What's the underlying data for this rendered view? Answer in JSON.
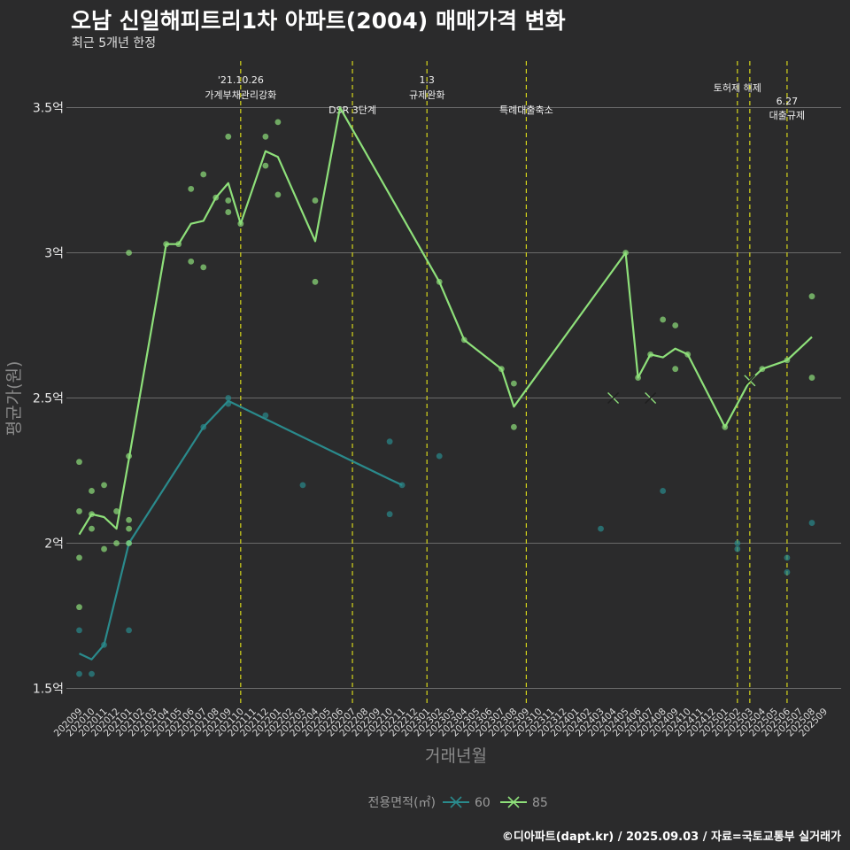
{
  "chart_data": {
    "type": "line",
    "title": "오남 신일해피트리1차 아파트(2004) 매매가격 변화",
    "subtitle": "최근 5개년 한정",
    "xlabel": "거래년월",
    "ylabel": "평균가(원)",
    "ylim": [
      1.45,
      3.65
    ],
    "yticks": [
      {
        "value": 1.5,
        "label": "1.5억"
      },
      {
        "value": 2.0,
        "label": "2억"
      },
      {
        "value": 2.5,
        "label": "2.5억"
      },
      {
        "value": 3.0,
        "label": "3억"
      },
      {
        "value": 3.5,
        "label": "3.5억"
      }
    ],
    "categories": [
      "202009",
      "202010",
      "202011",
      "202012",
      "202101",
      "202102",
      "202103",
      "202104",
      "202105",
      "202106",
      "202107",
      "202108",
      "202109",
      "202110",
      "202111",
      "202112",
      "202201",
      "202202",
      "202203",
      "202204",
      "202205",
      "202206",
      "202207",
      "202208",
      "202209",
      "202210",
      "202211",
      "202212",
      "202301",
      "202302",
      "202303",
      "202304",
      "202305",
      "202306",
      "202307",
      "202308",
      "202309",
      "202310",
      "202311",
      "202312",
      "202401",
      "202402",
      "202403",
      "202404",
      "202405",
      "202406",
      "202407",
      "202408",
      "202409",
      "202410",
      "202411",
      "202412",
      "202501",
      "202502",
      "202503",
      "202504",
      "202505",
      "202506",
      "202507",
      "202508",
      "202509"
    ],
    "legend_title": "전용면적(㎡)",
    "series": [
      {
        "name": "60",
        "color": "#2a8a8c",
        "line": [
          [
            0,
            1.62
          ],
          [
            1,
            1.6
          ],
          [
            2,
            1.65
          ],
          [
            4,
            2.0
          ],
          [
            10,
            2.4
          ],
          [
            12,
            2.49
          ],
          [
            25,
            2.22
          ],
          [
            26,
            2.2
          ]
        ],
        "points": [
          [
            0,
            1.7
          ],
          [
            0,
            1.55
          ],
          [
            1,
            1.55
          ],
          [
            2,
            1.65
          ],
          [
            4,
            1.7
          ],
          [
            4,
            2.0
          ],
          [
            10,
            2.4
          ],
          [
            12,
            2.5
          ],
          [
            12,
            2.48
          ],
          [
            15,
            2.44
          ],
          [
            18,
            2.2
          ],
          [
            25,
            2.35
          ],
          [
            25,
            2.1
          ],
          [
            26,
            2.2
          ],
          [
            29,
            2.3
          ],
          [
            42,
            2.05
          ],
          [
            47,
            2.18
          ],
          [
            53,
            2.0
          ],
          [
            53,
            1.98
          ],
          [
            57,
            1.95
          ],
          [
            57,
            1.9
          ],
          [
            59,
            2.07
          ]
        ],
        "markers": []
      },
      {
        "name": "85",
        "color": "#8ee07a",
        "line": [
          [
            0,
            2.03
          ],
          [
            1,
            2.1
          ],
          [
            2,
            2.09
          ],
          [
            3,
            2.05
          ],
          [
            4,
            2.29
          ],
          [
            7,
            3.03
          ],
          [
            8,
            3.03
          ],
          [
            9,
            3.1
          ],
          [
            10,
            3.11
          ],
          [
            11,
            3.19
          ],
          [
            12,
            3.24
          ],
          [
            13,
            3.1
          ],
          [
            15,
            3.35
          ],
          [
            16,
            3.33
          ],
          [
            19,
            3.04
          ],
          [
            21,
            3.5
          ],
          [
            29,
            2.9
          ],
          [
            31,
            2.7
          ],
          [
            34,
            2.6
          ],
          [
            35,
            2.47
          ],
          [
            44,
            3.0
          ],
          [
            45,
            2.57
          ],
          [
            46,
            2.65
          ],
          [
            47,
            2.64
          ],
          [
            48,
            2.67
          ],
          [
            49,
            2.65
          ],
          [
            52,
            2.4
          ],
          [
            54,
            2.56
          ],
          [
            55,
            2.6
          ],
          [
            57,
            2.63
          ],
          [
            59,
            2.71
          ]
        ],
        "points": [
          [
            0,
            2.28
          ],
          [
            0,
            2.11
          ],
          [
            0,
            1.95
          ],
          [
            0,
            1.78
          ],
          [
            1,
            2.18
          ],
          [
            1,
            2.1
          ],
          [
            1,
            2.05
          ],
          [
            2,
            2.2
          ],
          [
            2,
            1.98
          ],
          [
            3,
            2.11
          ],
          [
            3,
            2.0
          ],
          [
            4,
            3.0
          ],
          [
            4,
            2.3
          ],
          [
            4,
            2.08
          ],
          [
            4,
            2.05
          ],
          [
            4,
            2.0
          ],
          [
            7,
            3.03
          ],
          [
            8,
            3.03
          ],
          [
            9,
            3.22
          ],
          [
            9,
            2.97
          ],
          [
            10,
            3.27
          ],
          [
            10,
            2.95
          ],
          [
            11,
            3.19
          ],
          [
            12,
            3.4
          ],
          [
            12,
            3.18
          ],
          [
            12,
            3.14
          ],
          [
            13,
            3.1
          ],
          [
            15,
            3.4
          ],
          [
            15,
            3.3
          ],
          [
            16,
            3.45
          ],
          [
            16,
            3.2
          ],
          [
            19,
            3.18
          ],
          [
            19,
            2.9
          ],
          [
            29,
            2.9
          ],
          [
            31,
            2.7
          ],
          [
            34,
            2.6
          ],
          [
            35,
            2.55
          ],
          [
            35,
            2.4
          ],
          [
            44,
            3.0
          ],
          [
            45,
            2.57
          ],
          [
            46,
            2.65
          ],
          [
            47,
            2.77
          ],
          [
            48,
            2.75
          ],
          [
            48,
            2.6
          ],
          [
            49,
            2.65
          ],
          [
            52,
            2.4
          ],
          [
            55,
            2.6
          ],
          [
            57,
            2.63
          ],
          [
            59,
            2.85
          ],
          [
            59,
            2.57
          ]
        ],
        "markers": [
          [
            43,
            2.5
          ],
          [
            46,
            2.5
          ],
          [
            54,
            2.56
          ]
        ]
      }
    ],
    "events": [
      {
        "x": 13,
        "lines": [
          "'21.10.26",
          "가계부채관리강화"
        ]
      },
      {
        "x": 22,
        "lines": [
          "DSR 3단계"
        ]
      },
      {
        "x": 28,
        "lines": [
          "1.3",
          "규제완화"
        ]
      },
      {
        "x": 36,
        "lines": [
          "특례대출축소"
        ]
      },
      {
        "x": 53,
        "lines": [
          "토허제 해제"
        ]
      },
      {
        "x": 54,
        "lines": []
      },
      {
        "x": 57,
        "lines": [
          "6.27",
          "대출규제"
        ]
      }
    ],
    "event_color": "#d6d61a",
    "caption": "©디아파트(dapt.kr) / 2025.09.03 / 자료=국토교통부 실거래가"
  }
}
